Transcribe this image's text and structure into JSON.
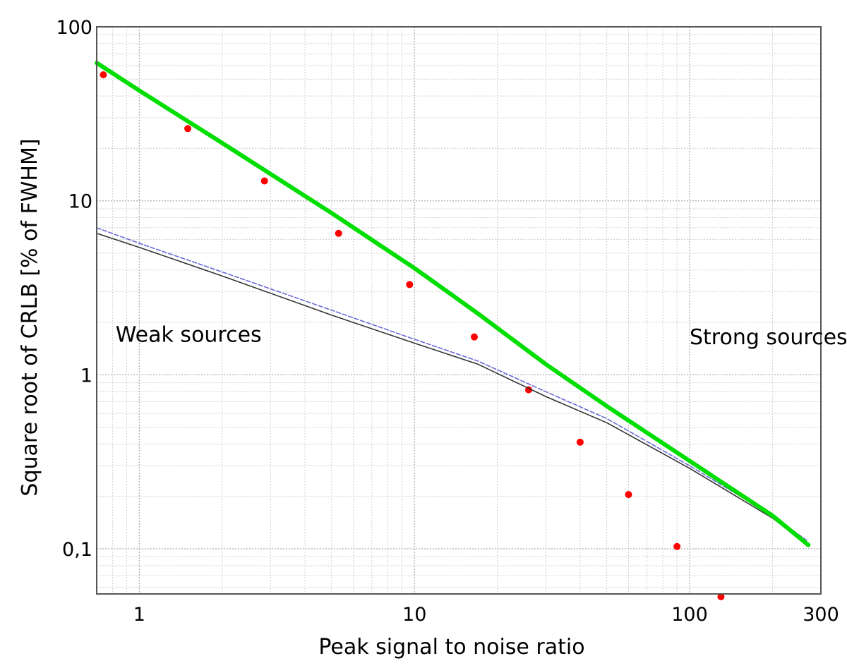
{
  "chart_data": {
    "type": "line",
    "xlabel": "Peak signal to noise ratio",
    "ylabel": "Square root of CRLB  [% of FWHM]",
    "x_scale": "log",
    "y_scale": "log",
    "xlim": [
      0.7,
      300
    ],
    "ylim": [
      0.055,
      100
    ],
    "grid": true,
    "x_ticks": [
      {
        "value": 1,
        "label": "1"
      },
      {
        "value": 10,
        "label": "10"
      },
      {
        "value": 100,
        "label": "100"
      },
      {
        "value": 300,
        "label": "300"
      }
    ],
    "y_ticks": [
      {
        "value": 0.1,
        "label": "0,1"
      },
      {
        "value": 1,
        "label": "1"
      },
      {
        "value": 10,
        "label": "10"
      },
      {
        "value": 100,
        "label": "100"
      }
    ],
    "annotations": [
      {
        "text": "Weak sources",
        "x": 0.82,
        "y": 1.55
      },
      {
        "text": "Strong sources",
        "x": 100,
        "y": 1.5
      }
    ],
    "series": [
      {
        "style": "line",
        "color": "#00dd00",
        "x": [
          0.7,
          1,
          2,
          5,
          10,
          17,
          30,
          50,
          100,
          200,
          270
        ],
        "y": [
          62,
          43,
          21.5,
          8.5,
          4.1,
          2.25,
          1.15,
          0.66,
          0.32,
          0.155,
          0.105
        ]
      },
      {
        "style": "points",
        "color": "#ff0000",
        "x": [
          0.74,
          1.5,
          2.85,
          5.3,
          9.6,
          16.5,
          26,
          40,
          60,
          90,
          130
        ],
        "y": [
          53,
          26,
          13,
          6.5,
          3.3,
          1.65,
          0.82,
          0.41,
          0.205,
          0.103,
          0.053
        ]
      },
      {
        "style": "line",
        "color": "#6a6ad8",
        "dash": "dashed",
        "x": [
          0.7,
          1,
          2,
          5,
          10,
          17,
          30,
          50,
          100,
          200,
          270
        ],
        "y": [
          7.0,
          5.7,
          3.9,
          2.35,
          1.6,
          1.2,
          0.8,
          0.56,
          0.3,
          0.155,
          0.11
        ]
      },
      {
        "style": "line",
        "color": "#333333",
        "x": [
          0.7,
          1,
          2,
          5,
          10,
          17,
          30,
          50,
          100,
          200,
          270
        ],
        "y": [
          6.5,
          5.4,
          3.7,
          2.2,
          1.52,
          1.15,
          0.75,
          0.53,
          0.29,
          0.15,
          0.105
        ]
      }
    ]
  }
}
